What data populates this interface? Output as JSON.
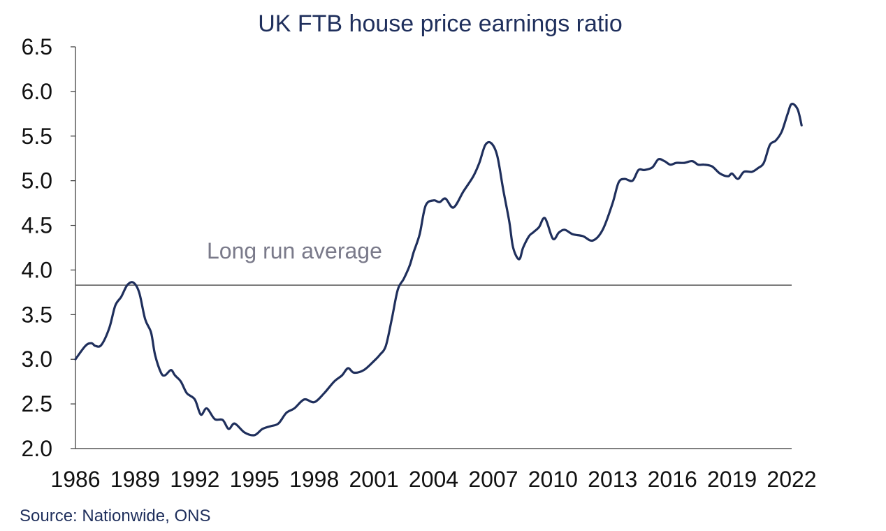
{
  "chart_data": {
    "type": "line",
    "title": "UK FTB house price earnings ratio",
    "source": "Source: Nationwide, ONS",
    "xlabel": "",
    "ylabel": "",
    "xlim": [
      1986,
      2022
    ],
    "ylim": [
      2.0,
      6.5
    ],
    "yticks": [
      "2.0",
      "2.5",
      "3.0",
      "3.5",
      "4.0",
      "4.5",
      "5.0",
      "5.5",
      "6.0",
      "6.5"
    ],
    "xticks": [
      "1986",
      "1989",
      "1992",
      "1995",
      "1998",
      "2001",
      "2004",
      "2007",
      "2010",
      "2013",
      "2016",
      "2019",
      "2022"
    ],
    "reference_line": {
      "label": "Long run average",
      "value": 3.83
    },
    "colors": {
      "line": "#1f2f5c",
      "reference": "#555555",
      "axis": "#333333"
    },
    "series": [
      {
        "name": "UK FTB house price earnings ratio",
        "x": [
          1986.0,
          1986.5,
          1986.8,
          1987.0,
          1987.3,
          1987.7,
          1988.0,
          1988.3,
          1988.6,
          1988.9,
          1989.2,
          1989.5,
          1989.8,
          1990.0,
          1990.3,
          1990.5,
          1990.8,
          1991.0,
          1991.3,
          1991.6,
          1992.0,
          1992.3,
          1992.6,
          1993.0,
          1993.4,
          1993.7,
          1994.0,
          1994.5,
          1995.0,
          1995.4,
          1995.8,
          1996.2,
          1996.6,
          1997.0,
          1997.5,
          1998.0,
          1998.5,
          1999.0,
          1999.4,
          1999.7,
          2000.0,
          2000.5,
          2001.0,
          2001.3,
          2001.6,
          2001.9,
          2002.2,
          2002.5,
          2002.8,
          2003.0,
          2003.3,
          2003.6,
          2004.0,
          2004.3,
          2004.6,
          2005.0,
          2005.5,
          2006.0,
          2006.3,
          2006.6,
          2006.9,
          2007.2,
          2007.5,
          2007.8,
          2008.0,
          2008.3,
          2008.5,
          2008.8,
          2009.0,
          2009.3,
          2009.6,
          2010.0,
          2010.3,
          2010.6,
          2011.0,
          2011.5,
          2012.0,
          2012.5,
          2013.0,
          2013.3,
          2013.6,
          2014.0,
          2014.3,
          2014.6,
          2015.0,
          2015.3,
          2015.6,
          2015.9,
          2016.2,
          2016.6,
          2017.0,
          2017.3,
          2017.6,
          2018.0,
          2018.4,
          2018.8,
          2019.0,
          2019.3,
          2019.6,
          2020.0,
          2020.3,
          2020.6,
          2020.9,
          2021.2,
          2021.5,
          2021.8,
          2022.0,
          2022.3,
          2022.5
        ],
        "values": [
          3.0,
          3.15,
          3.18,
          3.15,
          3.16,
          3.35,
          3.6,
          3.7,
          3.83,
          3.86,
          3.75,
          3.45,
          3.3,
          3.05,
          2.85,
          2.82,
          2.88,
          2.82,
          2.75,
          2.62,
          2.55,
          2.38,
          2.45,
          2.33,
          2.32,
          2.22,
          2.28,
          2.18,
          2.15,
          2.22,
          2.25,
          2.28,
          2.4,
          2.45,
          2.55,
          2.52,
          2.62,
          2.75,
          2.82,
          2.9,
          2.85,
          2.88,
          2.98,
          3.05,
          3.15,
          3.45,
          3.78,
          3.9,
          4.05,
          4.2,
          4.4,
          4.72,
          4.78,
          4.76,
          4.8,
          4.7,
          4.88,
          5.05,
          5.2,
          5.4,
          5.42,
          5.28,
          4.9,
          4.55,
          4.25,
          4.12,
          4.25,
          4.38,
          4.42,
          4.48,
          4.58,
          4.35,
          4.42,
          4.45,
          4.4,
          4.38,
          4.33,
          4.45,
          4.75,
          4.98,
          5.02,
          5.0,
          5.12,
          5.12,
          5.15,
          5.24,
          5.22,
          5.18,
          5.2,
          5.2,
          5.22,
          5.18,
          5.18,
          5.16,
          5.08,
          5.05,
          5.08,
          5.02,
          5.1,
          5.1,
          5.14,
          5.2,
          5.4,
          5.45,
          5.55,
          5.75,
          5.86,
          5.8,
          5.62
        ]
      }
    ]
  }
}
